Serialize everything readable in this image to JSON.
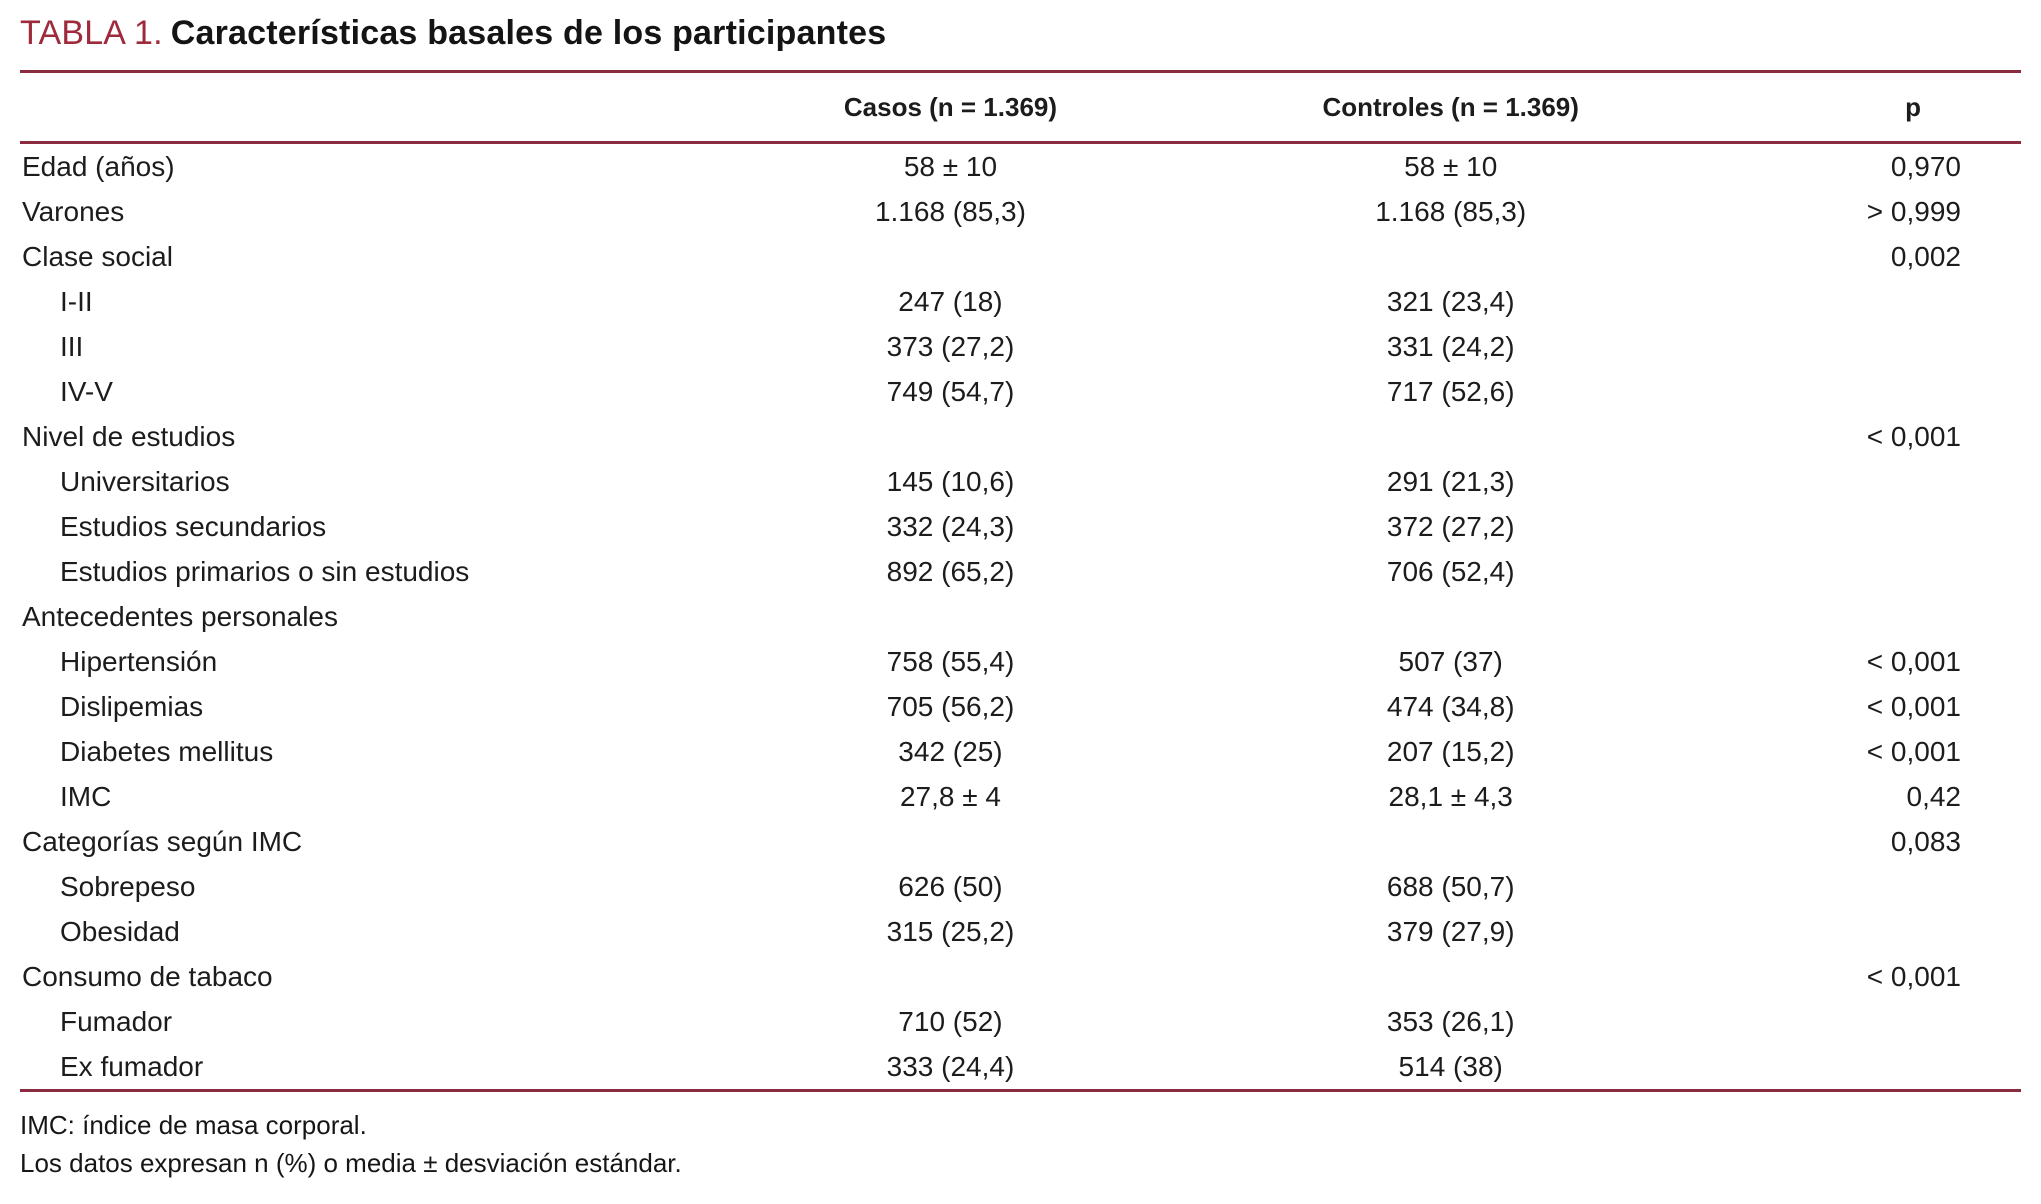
{
  "header": {
    "table_label": "TABLA 1.",
    "table_title": "Características basales de los participantes"
  },
  "colors": {
    "accent_rule": "#8a2c3f",
    "title_accent": "#9e2a3c",
    "text": "#1c1c1c"
  },
  "table": {
    "columns": [
      "Casos (n = 1.369)",
      "Controles (n = 1.369)",
      "p"
    ],
    "rows": [
      {
        "label": "Edad (años)",
        "casos": "58 ± 10",
        "controles": "58 ± 10",
        "p": "0,970",
        "indent": false
      },
      {
        "label": "Varones",
        "casos": "1.168 (85,3)",
        "controles": "1.168 (85,3)",
        "p": "> 0,999",
        "indent": false
      },
      {
        "label": "Clase social",
        "casos": "",
        "controles": "",
        "p": "0,002",
        "indent": false
      },
      {
        "label": "I-II",
        "casos": "247 (18)",
        "controles": "321 (23,4)",
        "p": "",
        "indent": true
      },
      {
        "label": "III",
        "casos": "373 (27,2)",
        "controles": "331 (24,2)",
        "p": "",
        "indent": true
      },
      {
        "label": "IV-V",
        "casos": "749 (54,7)",
        "controles": "717 (52,6)",
        "p": "",
        "indent": true
      },
      {
        "label": "Nivel de estudios",
        "casos": "",
        "controles": "",
        "p": "< 0,001",
        "indent": false
      },
      {
        "label": "Universitarios",
        "casos": "145 (10,6)",
        "controles": "291 (21,3)",
        "p": "",
        "indent": true
      },
      {
        "label": "Estudios secundarios",
        "casos": "332 (24,3)",
        "controles": "372 (27,2)",
        "p": "",
        "indent": true
      },
      {
        "label": "Estudios primarios o sin estudios",
        "casos": "892 (65,2)",
        "controles": "706 (52,4)",
        "p": "",
        "indent": true
      },
      {
        "label": "Antecedentes personales",
        "casos": "",
        "controles": "",
        "p": "",
        "indent": false
      },
      {
        "label": "Hipertensión",
        "casos": "758 (55,4)",
        "controles": "507 (37)",
        "p": "< 0,001",
        "indent": true
      },
      {
        "label": "Dislipemias",
        "casos": "705 (56,2)",
        "controles": "474 (34,8)",
        "p": "< 0,001",
        "indent": true
      },
      {
        "label": "Diabetes mellitus",
        "casos": "342 (25)",
        "controles": "207 (15,2)",
        "p": "< 0,001",
        "indent": true
      },
      {
        "label": "IMC",
        "casos": "27,8 ± 4",
        "controles": "28,1 ± 4,3",
        "p": "0,42",
        "indent": true
      },
      {
        "label": "Categorías según IMC",
        "casos": "",
        "controles": "",
        "p": "0,083",
        "indent": false
      },
      {
        "label": "Sobrepeso",
        "casos": "626 (50)",
        "controles": "688 (50,7)",
        "p": "",
        "indent": true
      },
      {
        "label": "Obesidad",
        "casos": "315 (25,2)",
        "controles": "379 (27,9)",
        "p": "",
        "indent": true
      },
      {
        "label": "Consumo de tabaco",
        "casos": "",
        "controles": "",
        "p": "< 0,001",
        "indent": false
      },
      {
        "label": "Fumador",
        "casos": "710 (52)",
        "controles": "353 (26,1)",
        "p": "",
        "indent": true
      },
      {
        "label": "Ex fumador",
        "casos": "333 (24,4)",
        "controles": "514 (38)",
        "p": "",
        "indent": true
      }
    ]
  },
  "footnotes": [
    "IMC: índice de masa corporal.",
    "Los datos expresan n (%) o media ± desviación estándar."
  ]
}
